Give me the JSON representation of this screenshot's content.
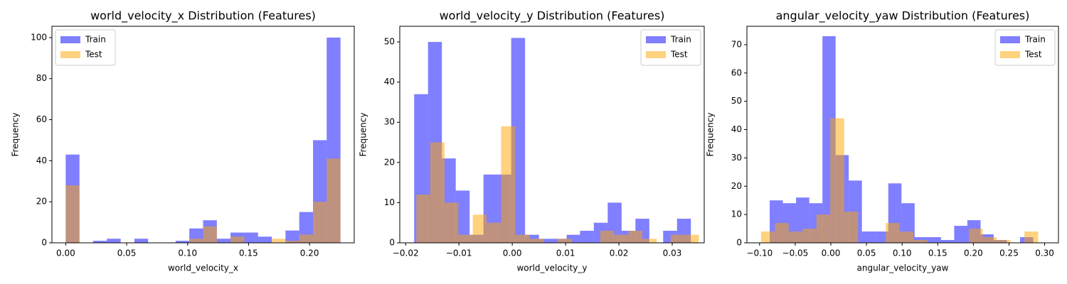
{
  "chart_data": [
    {
      "type": "histogram",
      "title": "world_velocity_x Distribution (Features)",
      "x_label": "world_velocity_x",
      "y_label": "Frequency",
      "xlim": [
        -0.0113,
        0.2367
      ],
      "xticks": [
        {
          "value": 0,
          "label": "0.00"
        },
        {
          "value": 0.05,
          "label": "0.05"
        },
        {
          "value": 0.1,
          "label": "0.10"
        },
        {
          "value": 0.15,
          "label": "0.15"
        },
        {
          "value": 0.2,
          "label": "0.20"
        }
      ],
      "ylim": [
        0,
        105.5
      ],
      "yticks": [
        0,
        20,
        40,
        60,
        80,
        100
      ],
      "legend": "upper left",
      "series": [
        {
          "name": "Train",
          "color": "#0000ff",
          "alpha": 0.5,
          "bins": [
            0,
            0.0113,
            0.0225,
            0.0338,
            0.0451,
            0.0564,
            0.0676,
            0.0789,
            0.0902,
            0.1014,
            0.1127,
            0.124,
            0.1352,
            0.1465,
            0.1578,
            0.1691,
            0.1803,
            0.1916,
            0.2029,
            0.2141,
            0.2254
          ],
          "values": [
            43,
            0,
            1,
            2,
            0,
            2,
            0,
            0,
            1,
            7,
            11,
            2,
            5,
            5,
            3,
            0,
            6,
            15,
            50,
            100
          ]
        },
        {
          "name": "Test",
          "color": "#ffa500",
          "alpha": 0.5,
          "bins": [
            0,
            0.0113,
            0.0225,
            0.0338,
            0.0451,
            0.0564,
            0.0676,
            0.0789,
            0.0902,
            0.1014,
            0.1127,
            0.124,
            0.1352,
            0.1465,
            0.1578,
            0.1691,
            0.1803,
            0.1916,
            0.2029,
            0.2141,
            0.2254
          ],
          "values": [
            28,
            0,
            0,
            0,
            0,
            0,
            0,
            0,
            0,
            2,
            8,
            0,
            3,
            0,
            0,
            2,
            1,
            4,
            20,
            41
          ]
        }
      ]
    },
    {
      "type": "histogram",
      "title": "world_velocity_y Distribution (Features)",
      "x_label": "world_velocity_y",
      "y_label": "Frequency",
      "xlim": [
        -0.0211,
        0.036
      ],
      "xticks": [
        {
          "value": -0.02,
          "label": "−0.02"
        },
        {
          "value": -0.01,
          "label": "−0.01"
        },
        {
          "value": 0,
          "label": "0.00"
        },
        {
          "value": 0.01,
          "label": "0.01"
        },
        {
          "value": 0.02,
          "label": "0.02"
        },
        {
          "value": 0.03,
          "label": "0.03"
        }
      ],
      "ylim": [
        0,
        53.9
      ],
      "yticks": [
        0,
        10,
        20,
        30,
        40,
        50
      ],
      "legend": "upper right",
      "series": [
        {
          "name": "Train",
          "color": "#0000ff",
          "alpha": 0.5,
          "bins": [
            -0.0184,
            -0.0158,
            -0.0132,
            -0.0106,
            -0.008,
            -0.0054,
            -0.0028,
            -0.0002,
            0.0024,
            0.005,
            0.0076,
            0.0102,
            0.0127,
            0.0153,
            0.0179,
            0.0205,
            0.0231,
            0.0257,
            0.0283,
            0.0309,
            0.0335
          ],
          "values": [
            37,
            50,
            21,
            13,
            2,
            17,
            17,
            51,
            2,
            1,
            1,
            2,
            3,
            5,
            10,
            3,
            6,
            0,
            3,
            6
          ]
        },
        {
          "name": "Test",
          "color": "#ffa500",
          "alpha": 0.5,
          "bins": [
            -0.018,
            -0.0154,
            -0.0127,
            -0.0101,
            -0.0074,
            -0.0048,
            -0.0021,
            0.0006,
            0.0032,
            0.0059,
            0.0085,
            0.0112,
            0.0138,
            0.0165,
            0.0191,
            0.0218,
            0.0244,
            0.0271,
            0.0297,
            0.0324,
            0.035
          ],
          "values": [
            12,
            25,
            10,
            2,
            7,
            5,
            29,
            2,
            1,
            0,
            1,
            0,
            0,
            3,
            2,
            3,
            1,
            0,
            2,
            2
          ]
        }
      ]
    },
    {
      "type": "histogram",
      "title": "angular_velocity_yaw Distribution (Features)",
      "x_label": "angular_velocity_yaw",
      "y_label": "Frequency",
      "xlim": [
        -0.1178,
        0.3194
      ],
      "xticks": [
        {
          "value": -0.1,
          "label": "−0.10"
        },
        {
          "value": -0.05,
          "label": "−0.05"
        },
        {
          "value": 0,
          "label": "0.00"
        },
        {
          "value": 0.05,
          "label": "0.05"
        },
        {
          "value": 0.1,
          "label": "0.10"
        },
        {
          "value": 0.15,
          "label": "0.15"
        },
        {
          "value": 0.2,
          "label": "0.20"
        },
        {
          "value": 0.25,
          "label": "0.25"
        },
        {
          "value": 0.3,
          "label": "0.30"
        }
      ],
      "ylim": [
        0,
        76.5
      ],
      "yticks": [
        0,
        10,
        20,
        30,
        40,
        50,
        60,
        70
      ],
      "legend": "upper right",
      "series": [
        {
          "name": "Train",
          "color": "#0000ff",
          "alpha": 0.5,
          "bins": [
            -0.0858,
            -0.0673,
            -0.0488,
            -0.0303,
            -0.0118,
            0.0067,
            0.0251,
            0.0436,
            0.0621,
            0.0806,
            0.0991,
            0.1176,
            0.1361,
            0.1546,
            0.1731,
            0.1916,
            0.2101,
            0.2285,
            0.247,
            0.2655,
            0.284
          ],
          "values": [
            15,
            14,
            16,
            14,
            73,
            31,
            22,
            4,
            4,
            21,
            14,
            2,
            2,
            1,
            6,
            8,
            3,
            1,
            0,
            2
          ]
        },
        {
          "name": "Test",
          "color": "#ffa500",
          "alpha": 0.5,
          "bins": [
            -0.098,
            -0.0786,
            -0.0591,
            -0.0397,
            -0.0202,
            -0.0008,
            0.0187,
            0.0382,
            0.0576,
            0.0771,
            0.0965,
            0.116,
            0.1354,
            0.1549,
            0.1743,
            0.1938,
            0.2132,
            0.2327,
            0.2521,
            0.2716,
            0.291
          ],
          "values": [
            4,
            7,
            4,
            5,
            10,
            44,
            11,
            0,
            0,
            7,
            4,
            1,
            0,
            0,
            0,
            5,
            2,
            1,
            0,
            4
          ]
        }
      ]
    }
  ]
}
